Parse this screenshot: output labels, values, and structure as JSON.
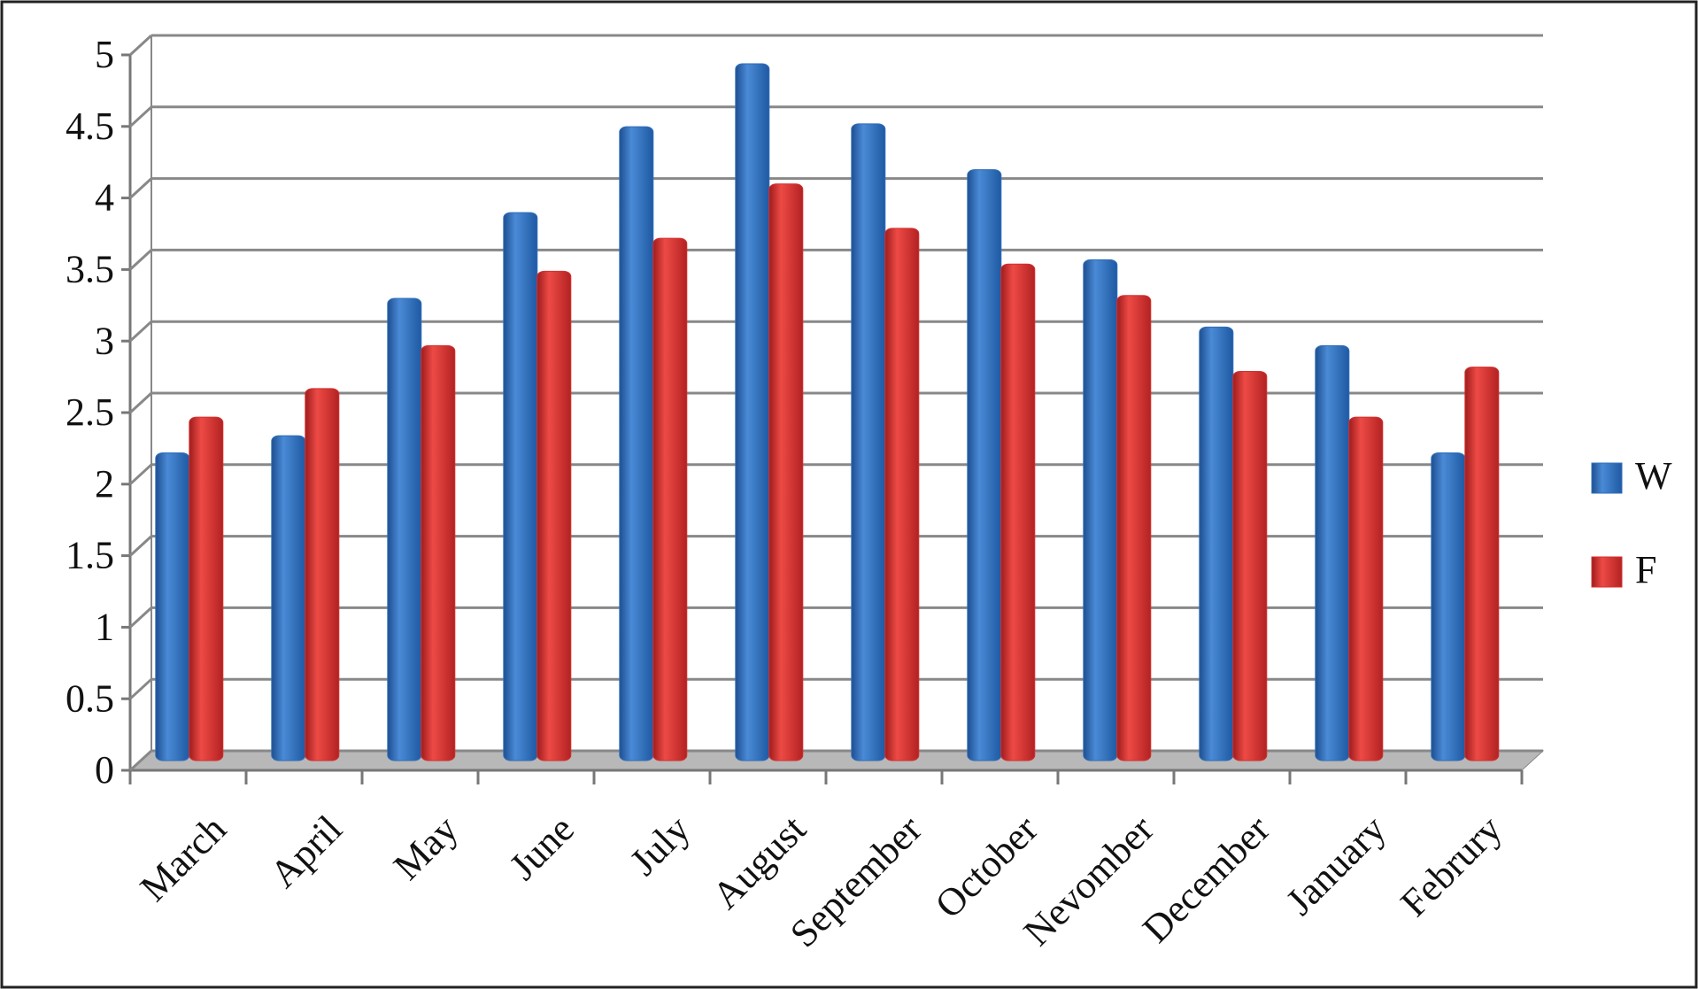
{
  "chart_data": {
    "type": "bar",
    "categories": [
      "March",
      "April",
      "May",
      "June",
      "July",
      "August",
      "September",
      "October",
      "Nevomber",
      "December",
      "January",
      "Februry"
    ],
    "series": [
      {
        "name": "W",
        "color": "#2f6db8",
        "values": [
          2.15,
          2.27,
          3.23,
          3.83,
          4.43,
          4.87,
          4.45,
          4.13,
          3.5,
          3.03,
          2.9,
          2.15
        ]
      },
      {
        "name": "F",
        "color": "#d42f2f",
        "values": [
          2.4,
          2.6,
          2.9,
          3.42,
          3.65,
          4.03,
          3.72,
          3.47,
          3.25,
          2.72,
          2.4,
          2.75
        ]
      }
    ],
    "ylim": [
      0,
      5
    ],
    "yticks": [
      0,
      0.5,
      1,
      1.5,
      2,
      2.5,
      3,
      3.5,
      4,
      4.5,
      5
    ],
    "grid": true,
    "legend": "right"
  }
}
